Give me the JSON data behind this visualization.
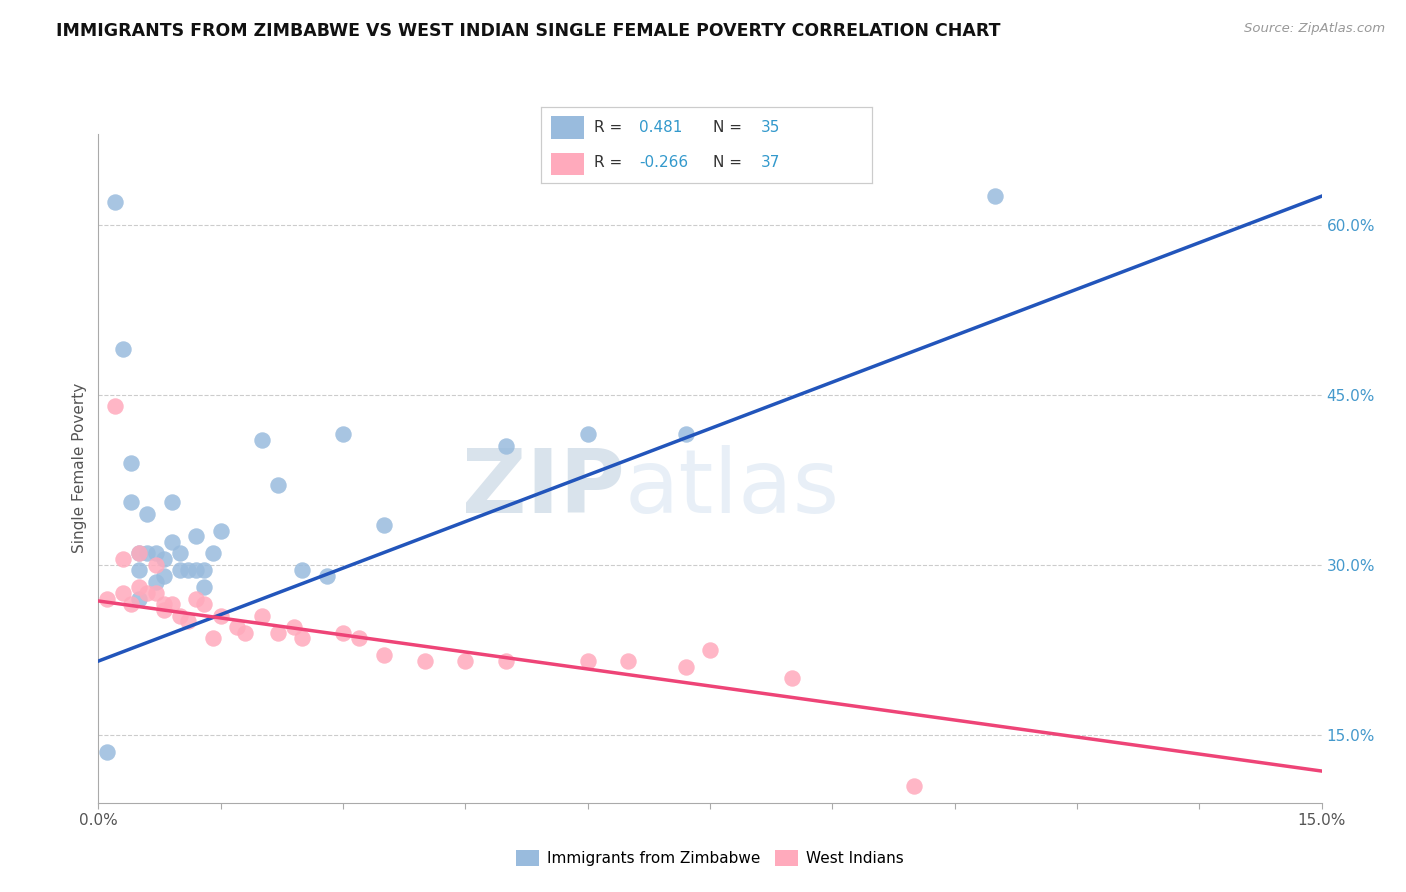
{
  "title": "IMMIGRANTS FROM ZIMBABWE VS WEST INDIAN SINGLE FEMALE POVERTY CORRELATION CHART",
  "source": "Source: ZipAtlas.com",
  "ylabel": "Single Female Poverty",
  "xlim": [
    0.0,
    0.15
  ],
  "ylim": [
    0.09,
    0.68
  ],
  "y_ticks_right": [
    0.15,
    0.3,
    0.45,
    0.6
  ],
  "y_tick_labels_right": [
    "15.0%",
    "30.0%",
    "45.0%",
    "60.0%"
  ],
  "watermark_zip": "ZIP",
  "watermark_atlas": "atlas",
  "legend_label1": "Immigrants from Zimbabwe",
  "legend_label2": "West Indians",
  "blue_color": "#99BBDD",
  "pink_color": "#FFAABC",
  "blue_line_color": "#2255BB",
  "pink_line_color": "#EE4477",
  "background_color": "#FFFFFF",
  "grid_color": "#CCCCCC",
  "blue_line_x0": 0.0,
  "blue_line_y0": 0.215,
  "blue_line_x1": 0.15,
  "blue_line_y1": 0.625,
  "pink_line_x0": 0.0,
  "pink_line_x1": 0.15,
  "pink_line_y0": 0.268,
  "pink_line_y1": 0.118,
  "zimbabwe_x": [
    0.001,
    0.002,
    0.003,
    0.004,
    0.004,
    0.005,
    0.005,
    0.005,
    0.006,
    0.006,
    0.007,
    0.007,
    0.008,
    0.008,
    0.009,
    0.009,
    0.01,
    0.01,
    0.011,
    0.012,
    0.012,
    0.013,
    0.013,
    0.014,
    0.015,
    0.02,
    0.022,
    0.025,
    0.028,
    0.03,
    0.035,
    0.05,
    0.06,
    0.072,
    0.11
  ],
  "zimbabwe_y": [
    0.135,
    0.62,
    0.49,
    0.39,
    0.355,
    0.31,
    0.295,
    0.27,
    0.31,
    0.345,
    0.31,
    0.285,
    0.305,
    0.29,
    0.32,
    0.355,
    0.295,
    0.31,
    0.295,
    0.295,
    0.325,
    0.28,
    0.295,
    0.31,
    0.33,
    0.41,
    0.37,
    0.295,
    0.29,
    0.415,
    0.335,
    0.405,
    0.415,
    0.415,
    0.625
  ],
  "westindian_x": [
    0.001,
    0.002,
    0.003,
    0.003,
    0.004,
    0.005,
    0.005,
    0.006,
    0.007,
    0.007,
    0.008,
    0.008,
    0.009,
    0.01,
    0.011,
    0.012,
    0.013,
    0.014,
    0.015,
    0.017,
    0.018,
    0.02,
    0.022,
    0.024,
    0.025,
    0.03,
    0.032,
    0.035,
    0.04,
    0.045,
    0.05,
    0.06,
    0.065,
    0.072,
    0.075,
    0.085,
    0.1
  ],
  "westindian_y": [
    0.27,
    0.44,
    0.275,
    0.305,
    0.265,
    0.31,
    0.28,
    0.275,
    0.3,
    0.275,
    0.265,
    0.26,
    0.265,
    0.255,
    0.25,
    0.27,
    0.265,
    0.235,
    0.255,
    0.245,
    0.24,
    0.255,
    0.24,
    0.245,
    0.235,
    0.24,
    0.235,
    0.22,
    0.215,
    0.215,
    0.215,
    0.215,
    0.215,
    0.21,
    0.225,
    0.2,
    0.105
  ]
}
